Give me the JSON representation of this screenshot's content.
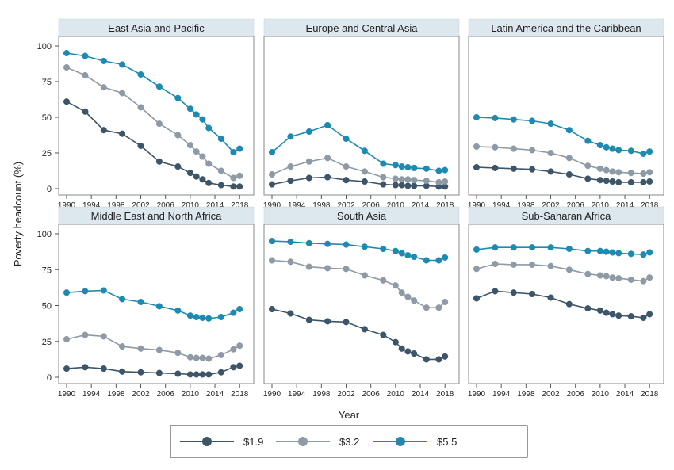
{
  "figure": {
    "ylabel": "Poverty headcount (%)",
    "xlabel": "Year"
  },
  "legend": [
    {
      "label": "$1.9",
      "color": "#3d5568"
    },
    {
      "label": "$3.2",
      "color": "#8e9aa6"
    },
    {
      "label": "$5.5",
      "color": "#1d8ab2"
    }
  ],
  "chart_data": {
    "type": "line",
    "ylim": [
      0,
      100
    ],
    "xlim": [
      1990,
      2019
    ],
    "x_ticks": [
      1990,
      1994,
      1998,
      2002,
      2006,
      2010,
      2014,
      2018
    ],
    "y_ticks": [
      0,
      25,
      50,
      75,
      100
    ],
    "grid": false,
    "legend_position": "bottom",
    "x": [
      1990,
      1993,
      1996,
      1999,
      2002,
      2005,
      2008,
      2010,
      2011,
      2012,
      2013,
      2015,
      2017,
      2018
    ],
    "panels": [
      {
        "title": "East Asia and Pacific",
        "series": [
          {
            "name": "$1.9",
            "values": [
              61,
              54,
              41,
              38.5,
              30,
              19,
              15.5,
              11,
              8.5,
              6.5,
              4,
              2.5,
              1.5,
              1.5
            ]
          },
          {
            "name": "$3.2",
            "values": [
              85,
              79.5,
              71,
              67,
              57,
              45.5,
              37.5,
              30.5,
              26,
              22.5,
              17.5,
              12.5,
              7.5,
              9
            ]
          },
          {
            "name": "$5.5",
            "values": [
              95,
              93,
              89.5,
              87,
              80,
              71.5,
              63.5,
              56,
              52,
              48.5,
              42.5,
              35,
              25.5,
              28
            ]
          }
        ]
      },
      {
        "title": "Europe and Central Asia",
        "series": [
          {
            "name": "$1.9",
            "values": [
              3,
              5.5,
              7.5,
              8,
              6,
              5,
              3,
              2.5,
              2.5,
              2,
              2,
              2,
              1.5,
              1.5
            ]
          },
          {
            "name": "$3.2",
            "values": [
              10,
              15.5,
              19,
              21.5,
              15.5,
              12,
              8,
              7,
              6.5,
              6.5,
              6,
              5.5,
              4.5,
              5
            ]
          },
          {
            "name": "$5.5",
            "values": [
              25.5,
              36.5,
              40,
              44.5,
              35,
              26.5,
              17.5,
              16.5,
              15.5,
              15,
              14.5,
              14,
              12.5,
              13
            ]
          }
        ]
      },
      {
        "title": "Latin America and the Caribbean",
        "series": [
          {
            "name": "$1.9",
            "values": [
              15,
              14.5,
              14,
              13.5,
              12,
              10,
              7,
              6,
              5.5,
              5,
              4.5,
              4.5,
              4.5,
              5
            ]
          },
          {
            "name": "$3.2",
            "values": [
              29.5,
              29,
              28,
              27,
              25,
              21.5,
              16,
              14,
              13,
              12,
              11.5,
              11,
              10.5,
              11.5
            ]
          },
          {
            "name": "$5.5",
            "values": [
              50,
              49.5,
              48.5,
              47.5,
              45.5,
              41,
              33.5,
              30.5,
              29,
              28,
              27,
              26.5,
              24.5,
              26
            ]
          }
        ]
      },
      {
        "title": "Middle East and North Africa",
        "series": [
          {
            "name": "$1.9",
            "values": [
              6,
              7,
              6,
              4,
              3.5,
              3,
              2.5,
              2,
              2,
              2,
              2,
              3.5,
              7,
              8
            ]
          },
          {
            "name": "$3.2",
            "values": [
              26.5,
              29.5,
              28.5,
              21.5,
              20,
              19,
              17,
              14,
              13.5,
              13.5,
              13,
              15.5,
              19.5,
              22
            ]
          },
          {
            "name": "$5.5",
            "values": [
              59,
              60,
              60.5,
              54.5,
              52.5,
              49.5,
              46.5,
              43,
              42,
              41.5,
              41,
              42,
              45,
              47.5
            ]
          }
        ]
      },
      {
        "title": "South Asia",
        "series": [
          {
            "name": "$1.9",
            "values": [
              47.5,
              44.5,
              40,
              39,
              38.5,
              33.5,
              29.5,
              24.5,
              20,
              18,
              16.5,
              12.5,
              12.5,
              14.5
            ]
          },
          {
            "name": "$3.2",
            "values": [
              81.5,
              80.5,
              77,
              76,
              75.5,
              71,
              67.5,
              64,
              59,
              56,
              53.5,
              48.5,
              48.5,
              52.5
            ]
          },
          {
            "name": "$5.5",
            "values": [
              95,
              94.5,
              93.5,
              93,
              92.5,
              91,
              89.5,
              88,
              86.5,
              85,
              84,
              81.5,
              81.5,
              83.5
            ]
          }
        ]
      },
      {
        "title": "Sub-Saharan Africa",
        "series": [
          {
            "name": "$1.9",
            "values": [
              55,
              60,
              59,
              58,
              55.5,
              51,
              48,
              46.5,
              45,
              44,
              43,
              42.5,
              41.5,
              44
            ]
          },
          {
            "name": "$3.2",
            "values": [
              75.5,
              79,
              78.5,
              78.5,
              77.5,
              75,
              72,
              71,
              70.5,
              69.5,
              69,
              68,
              67,
              69.5
            ]
          },
          {
            "name": "$5.5",
            "values": [
              89,
              90.5,
              90.5,
              90.5,
              90.5,
              89.5,
              88,
              88,
              87.5,
              87,
              86.5,
              86,
              85.5,
              87
            ]
          }
        ]
      }
    ]
  }
}
